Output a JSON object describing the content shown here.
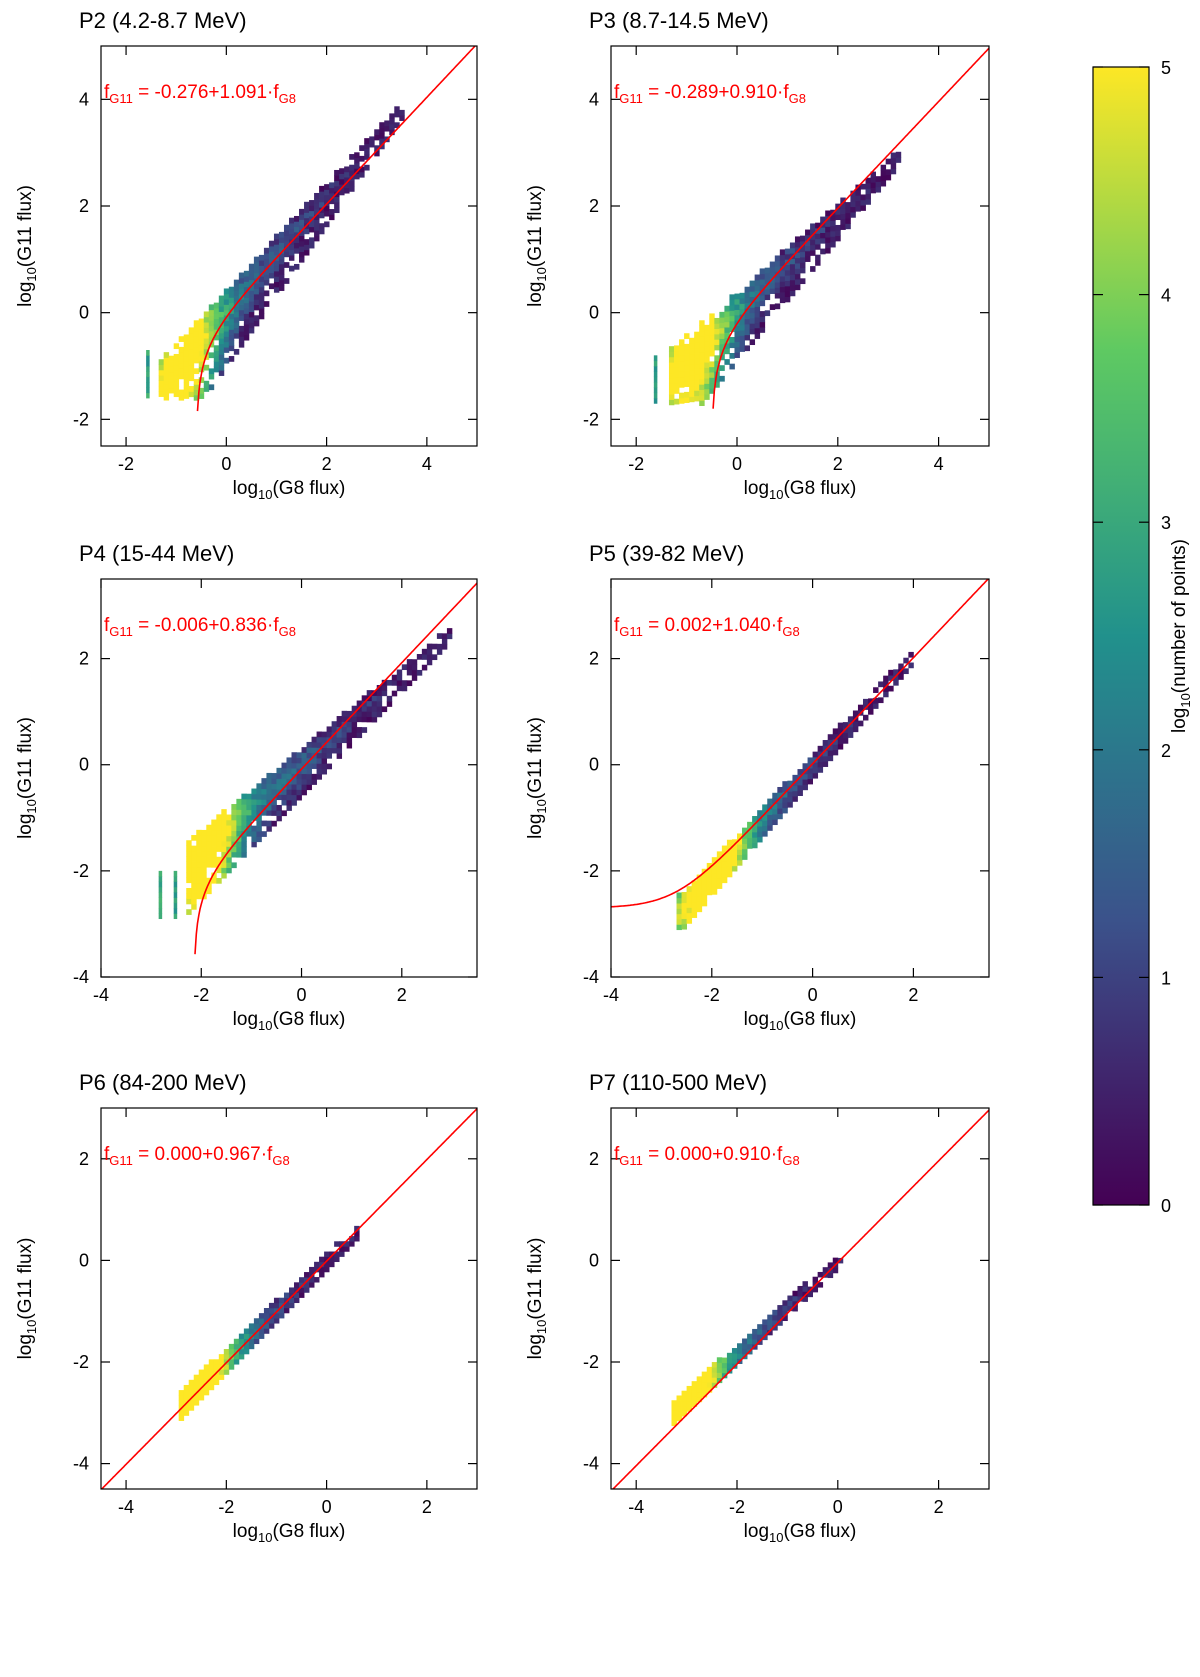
{
  "figure": {
    "colorbar": {
      "label": "log10(number of points)",
      "label_base": "log",
      "label_sub": "10",
      "label_rest": "(number of points)",
      "range": [
        0,
        5
      ],
      "ticks": [
        "0",
        "1",
        "2",
        "3",
        "4",
        "5"
      ],
      "colors": [
        "#440154",
        "#3b528b",
        "#21918c",
        "#5ec962",
        "#fde725"
      ]
    }
  },
  "chart_data": [
    {
      "type": "heatmap",
      "title": "P2 (4.2-8.7 MeV)",
      "xlabel": "log10(G8 flux)",
      "ylabel": "log10(G11 flux)",
      "xlim": [
        -2.5,
        5
      ],
      "ylim": [
        -2.5,
        5
      ],
      "xticks": [
        -2,
        0,
        2,
        4
      ],
      "yticks": [
        -2,
        0,
        2,
        4
      ],
      "fit": {
        "a": -0.276,
        "b": 1.091,
        "text_label": "f",
        "text_sub": "G11",
        "text_mid": " = -0.276+1.091·f",
        "text_sub2": "G8"
      },
      "density": {
        "x_min": -1.35,
        "x_max": 3.5,
        "low_y": -1.6,
        "spread_below": 1.3,
        "spread_above": 0.55,
        "peak_x": -0.9,
        "peak_level": 4.1,
        "stripe_x": [
          -1.6
        ],
        "seed": 11
      }
    },
    {
      "type": "heatmap",
      "title": "P3 (8.7-14.5 MeV)",
      "xlabel": "log10(G8 flux)",
      "ylabel": "log10(G11 flux)",
      "xlim": [
        -2.5,
        5
      ],
      "ylim": [
        -2.5,
        5
      ],
      "xticks": [
        -2,
        0,
        2,
        4
      ],
      "yticks": [
        -2,
        0,
        2,
        4
      ],
      "fit": {
        "a": -0.289,
        "b": 0.91,
        "text_label": "f",
        "text_sub": "G11",
        "text_mid": " = -0.289+0.910·f",
        "text_sub2": "G8"
      },
      "density": {
        "x_min": -1.35,
        "x_max": 3.15,
        "low_y": -1.7,
        "spread_below": 1.2,
        "spread_above": 0.5,
        "peak_x": -0.9,
        "peak_level": 4.1,
        "stripe_x": [
          -1.65
        ],
        "seed": 23
      }
    },
    {
      "type": "heatmap",
      "title": "P4 (15-44 MeV)",
      "xlabel": "log10(G8 flux)",
      "ylabel": "log10(G11 flux)",
      "xlim": [
        -4,
        3.5
      ],
      "ylim": [
        -4,
        3.5
      ],
      "xticks": [
        -4,
        -2,
        0,
        2
      ],
      "yticks": [
        -4,
        -2,
        0,
        2
      ],
      "fit": {
        "a": -0.006,
        "b": 0.836,
        "text_label": "f",
        "text_sub": "G11",
        "text_mid": " = -0.006+0.836·f",
        "text_sub2": "G8"
      },
      "density": {
        "x_min": -2.3,
        "x_max": 2.9,
        "low_y": -2.9,
        "spread_below": 0.9,
        "spread_above": 0.45,
        "peak_x": -2.0,
        "peak_level": 4.5,
        "stripe_x": [
          -2.85,
          -2.55
        ],
        "seed": 37
      }
    },
    {
      "type": "heatmap",
      "title": "P5 (39-82 MeV)",
      "xlabel": "log10(G8 flux)",
      "ylabel": "log10(G11 flux)",
      "xlim": [
        -4,
        3.5
      ],
      "ylim": [
        -4,
        3.5
      ],
      "xticks": [
        -4,
        -2,
        0,
        2
      ],
      "yticks": [
        -4,
        -2,
        0,
        2
      ],
      "fit": {
        "a": 0.002,
        "b": 1.04,
        "text_label": "f",
        "text_sub": "G11",
        "text_mid": " =  0.002+1.040·f",
        "text_sub2": "G8"
      },
      "density": {
        "x_min": -2.7,
        "x_max": 1.9,
        "low_y": -3.1,
        "spread_below": 0.4,
        "spread_above": 0.3,
        "peak_x": -2.0,
        "peak_level": 4.6,
        "stripe_x": [],
        "seed": 41
      }
    },
    {
      "type": "heatmap",
      "title": "P6 (84-200 MeV)",
      "xlabel": "log10(G8 flux)",
      "ylabel": "log10(G11 flux)",
      "xlim": [
        -4.5,
        3
      ],
      "ylim": [
        -4.5,
        3
      ],
      "xticks": [
        -4,
        -2,
        0,
        2
      ],
      "yticks": [
        -4,
        -2,
        0,
        2
      ],
      "fit": {
        "a": 0.0,
        "b": 0.967,
        "text_label": "f",
        "text_sub": "G11",
        "text_mid": " =  0.000+0.967·f",
        "text_sub2": "G8"
      },
      "density": {
        "x_min": -2.95,
        "x_max": 0.6,
        "low_y": -3.5,
        "spread_below": 0.3,
        "spread_above": 0.25,
        "peak_x": -2.6,
        "peak_level": 4.7,
        "stripe_x": [],
        "seed": 53
      }
    },
    {
      "type": "heatmap",
      "title": "P7 (110-500 MeV)",
      "xlabel": "log10(G8 flux)",
      "ylabel": "log10(G11 flux)",
      "xlim": [
        -4.5,
        3
      ],
      "ylim": [
        -4.5,
        3
      ],
      "xticks": [
        -4,
        -2,
        0,
        2
      ],
      "yticks": [
        -4,
        -2,
        0,
        2
      ],
      "fit": {
        "a": 0.0,
        "b": 0.91,
        "text_label": "f",
        "text_sub": "G11",
        "text_mid": " =  0.000+0.910·f",
        "text_sub2": "G8"
      },
      "density": {
        "x_min": -3.3,
        "x_max": 0.05,
        "low_y": -3.4,
        "spread_below": 0.25,
        "spread_above": 0.2,
        "peak_x": -3.0,
        "peak_level": 4.7,
        "stripe_x": [],
        "seed": 67
      }
    }
  ]
}
